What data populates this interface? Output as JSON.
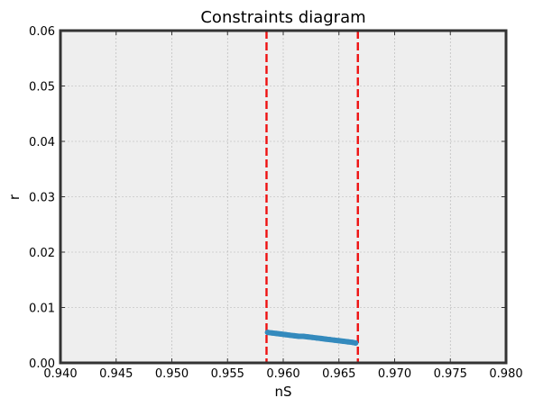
{
  "chart_data": {
    "type": "scatter",
    "title": "Constraints diagram",
    "xlabel": "nS",
    "ylabel": "r",
    "xlim": [
      0.94,
      0.98
    ],
    "ylim": [
      0.0,
      0.06
    ],
    "x_ticks": [
      "0.940",
      "0.945",
      "0.950",
      "0.955",
      "0.960",
      "0.965",
      "0.970",
      "0.975",
      "0.980"
    ],
    "y_ticks": [
      "0.00",
      "0.01",
      "0.02",
      "0.03",
      "0.04",
      "0.05",
      "0.06"
    ],
    "x_tick_values": [
      0.94,
      0.945,
      0.95,
      0.955,
      0.96,
      0.965,
      0.97,
      0.975,
      0.98
    ],
    "y_tick_values": [
      0.0,
      0.01,
      0.02,
      0.03,
      0.04,
      0.05,
      0.06
    ],
    "grid": true,
    "vertical_lines": [
      {
        "x": 0.9585,
        "color": "#ee1111",
        "style": "dashed"
      },
      {
        "x": 0.9667,
        "color": "#ee1111",
        "style": "dashed"
      }
    ],
    "series": [
      {
        "color": "#348abd",
        "points": [
          [
            0.9586,
            0.0055
          ],
          [
            0.959,
            0.0054
          ],
          [
            0.9594,
            0.0053
          ],
          [
            0.9598,
            0.0052
          ],
          [
            0.9602,
            0.0051
          ],
          [
            0.9606,
            0.005
          ],
          [
            0.961,
            0.0049
          ],
          [
            0.9614,
            0.0048
          ],
          [
            0.9618,
            0.0048
          ],
          [
            0.9622,
            0.0047
          ],
          [
            0.9626,
            0.0046
          ],
          [
            0.963,
            0.0045
          ],
          [
            0.9634,
            0.0044
          ],
          [
            0.9638,
            0.0043
          ],
          [
            0.9642,
            0.0042
          ],
          [
            0.9646,
            0.0041
          ],
          [
            0.965,
            0.004
          ],
          [
            0.9654,
            0.0039
          ],
          [
            0.9658,
            0.0038
          ],
          [
            0.9662,
            0.0037
          ],
          [
            0.9665,
            0.0036
          ]
        ]
      }
    ]
  }
}
